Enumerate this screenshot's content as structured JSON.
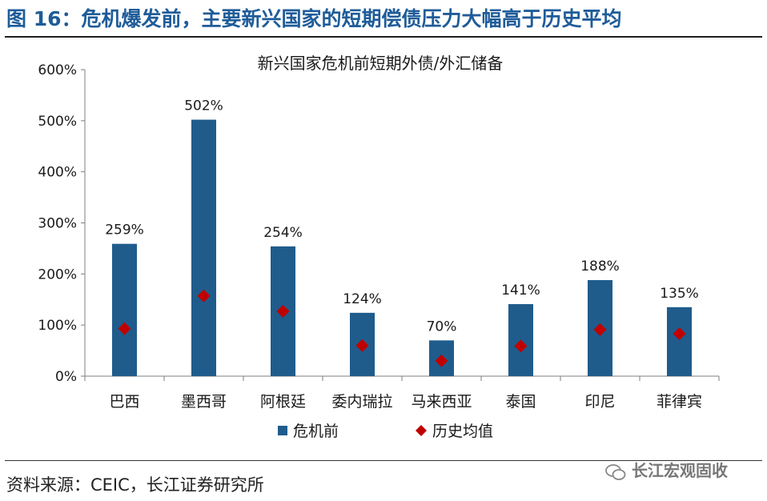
{
  "figure_title": "图 16：危机爆发前，主要新兴国家的短期偿债压力大幅高于历史平均",
  "source_note": "资料来源：CEIC，长江证券研究所",
  "watermark_text": "长江宏观固收",
  "colors": {
    "bar": "#1f5c8c",
    "marker": "#c00000",
    "title": "#1f5c99",
    "axis": "#7f7f7f"
  },
  "chart_data": {
    "type": "bar",
    "title": "新兴国家危机前短期外债/外汇储备",
    "categories": [
      "巴西",
      "墨西哥",
      "阿根廷",
      "委内瑞拉",
      "马来西亚",
      "泰国",
      "印尼",
      "菲律宾"
    ],
    "series": [
      {
        "name": "危机前",
        "type": "bar",
        "values": [
          259,
          502,
          254,
          124,
          70,
          141,
          188,
          135
        ],
        "data_labels": [
          "259%",
          "502%",
          "254%",
          "124%",
          "70%",
          "141%",
          "188%",
          "135%"
        ]
      },
      {
        "name": "历史均值",
        "type": "marker",
        "values": [
          93,
          157,
          127,
          60,
          30,
          59,
          91,
          83
        ]
      }
    ],
    "ylim": [
      0,
      600
    ],
    "yticks": [
      0,
      100,
      200,
      300,
      400,
      500,
      600
    ],
    "ytick_labels": [
      "0%",
      "100%",
      "200%",
      "300%",
      "400%",
      "500%",
      "600%"
    ],
    "legend_position": "bottom",
    "grid": false
  }
}
